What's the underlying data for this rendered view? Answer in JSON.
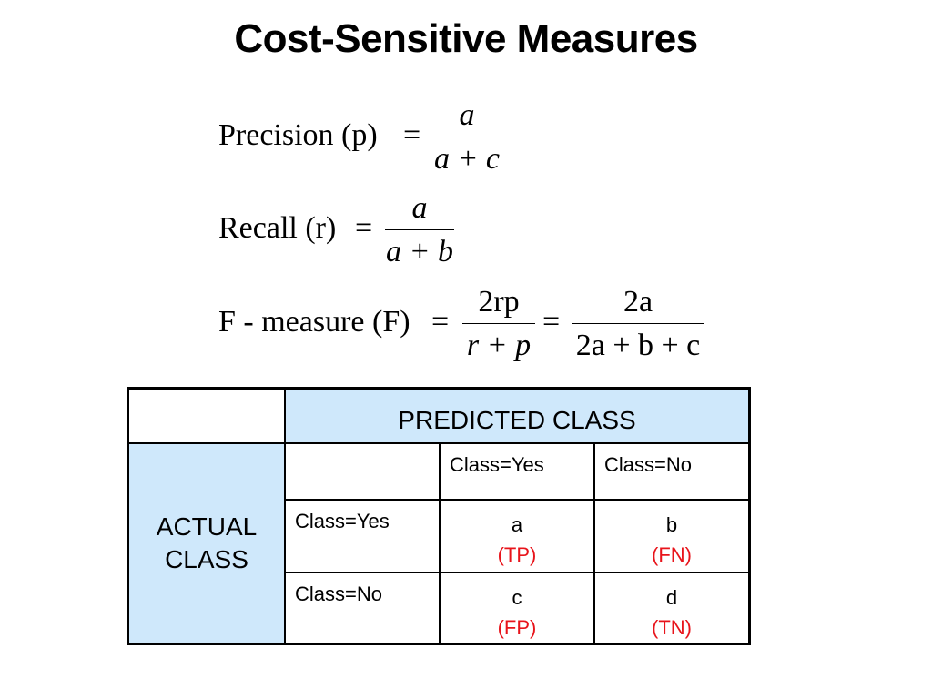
{
  "title": "Cost-Sensitive Measures",
  "formulas": {
    "precision": {
      "lhs": "Precision (p)",
      "eq": "=",
      "numerator": "a",
      "denominator": "a + c"
    },
    "recall": {
      "lhs": "Recall (r)",
      "eq": "=",
      "numerator": "a",
      "denominator": "a + b"
    },
    "fmeasure": {
      "lhs": "F - measure (F)",
      "eq": "=",
      "numerator1": "2rp",
      "denominator1": "r + p",
      "eq2": "=",
      "numerator2": "2a",
      "denominator2": "2a + b + c"
    }
  },
  "confusion_matrix": {
    "predicted_header": "PREDICTED CLASS",
    "actual_header_line1": "ACTUAL",
    "actual_header_line2": "CLASS",
    "col_labels": [
      "Class=Yes",
      "Class=No"
    ],
    "row_labels": [
      "Class=Yes",
      "Class=No"
    ],
    "cells": [
      [
        {
          "value": "a",
          "tag": "(TP)"
        },
        {
          "value": "b",
          "tag": "(FN)"
        }
      ],
      [
        {
          "value": "c",
          "tag": "(FP)"
        },
        {
          "value": "d",
          "tag": "(TN)"
        }
      ]
    ],
    "colors": {
      "header_fill": "#cfe8fb",
      "tag_text": "#e8141b"
    }
  }
}
